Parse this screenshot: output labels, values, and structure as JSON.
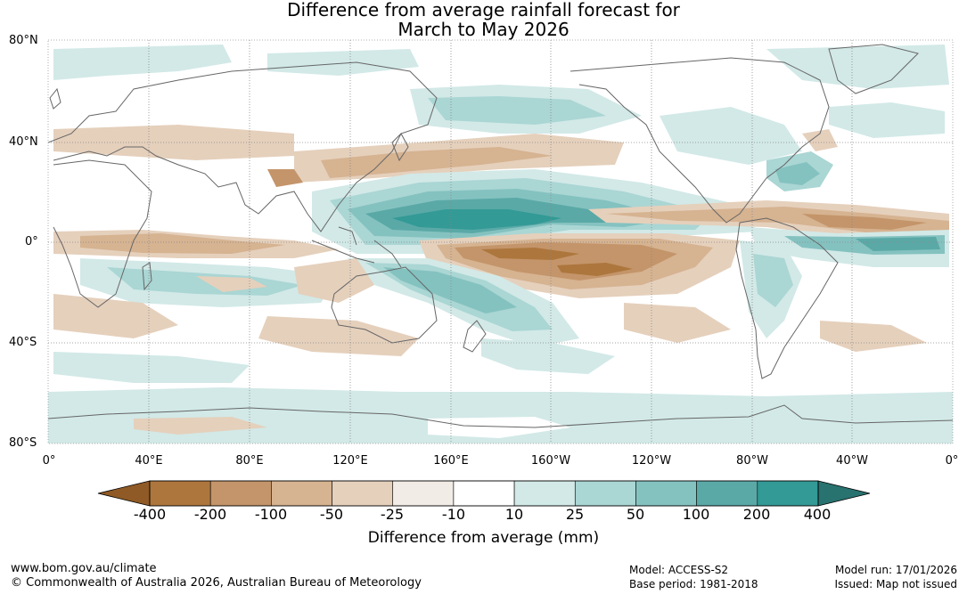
{
  "title": {
    "line1": "Difference from average rainfall forecast for",
    "line2": "March to May 2026"
  },
  "map": {
    "latitude_labels": [
      "80°N",
      "40°N",
      "0°",
      "40°S",
      "80°S"
    ],
    "longitude_labels": [
      "0°",
      "40°E",
      "80°E",
      "120°E",
      "160°E",
      "160°W",
      "120°W",
      "80°W",
      "40°W",
      "0°"
    ],
    "gridlines": "dotted",
    "coastlines": "grey"
  },
  "colorbar": {
    "tick_labels": [
      "-400",
      "-200",
      "-100",
      "-50",
      "-25",
      "-10",
      "10",
      "25",
      "50",
      "100",
      "200",
      "400"
    ],
    "colors": [
      "#8f5a25",
      "#ad763d",
      "#c4956a",
      "#d6b391",
      "#e5d0bc",
      "#f2ece6",
      "#ffffff",
      "#d2e9e7",
      "#aad6d4",
      "#84c2c0",
      "#5aa9a7",
      "#339a96",
      "#28726f"
    ],
    "axis_label": "Difference from average (mm)"
  },
  "footer": {
    "website": "www.bom.gov.au/climate",
    "copyright": "© Commonwealth of Australia 2026, Australian Bureau of Meteorology",
    "model": "Model: ACCESS-S2",
    "base_period": "Base period: 1981-2018",
    "model_run": "Model run: 17/01/2026",
    "issued": "Issued: Map not issued"
  }
}
